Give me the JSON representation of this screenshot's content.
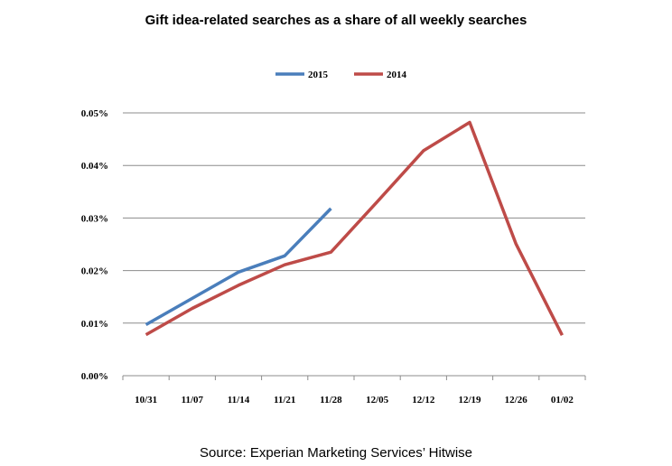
{
  "chart_data": {
    "type": "line",
    "title": "Gift idea-related searches as a share of all weekly searches",
    "categories": [
      "10/31",
      "11/07",
      "11/14",
      "11/21",
      "11/28",
      "12/05",
      "12/12",
      "12/19",
      "12/26",
      "01/02"
    ],
    "y_ticks": [
      "0.00%",
      "0.01%",
      "0.02%",
      "0.03%",
      "0.04%",
      "0.05%"
    ],
    "ylim": [
      0,
      0.05
    ],
    "xlabel": "",
    "ylabel": "",
    "legend_position": "top-center",
    "grid": true,
    "series": [
      {
        "name": "2015",
        "color": "#4a7ebb",
        "values": [
          0.0097,
          0.0147,
          0.0197,
          0.0228,
          0.0318,
          null,
          null,
          null,
          null,
          null
        ]
      },
      {
        "name": "2014",
        "color": "#be4b48",
        "values": [
          0.0078,
          0.0128,
          0.0172,
          0.0211,
          0.0235,
          0.0331,
          0.0428,
          0.0482,
          0.0251,
          0.0077
        ]
      }
    ],
    "source": "Source: Experian Marketing Services’ Hitwise"
  }
}
